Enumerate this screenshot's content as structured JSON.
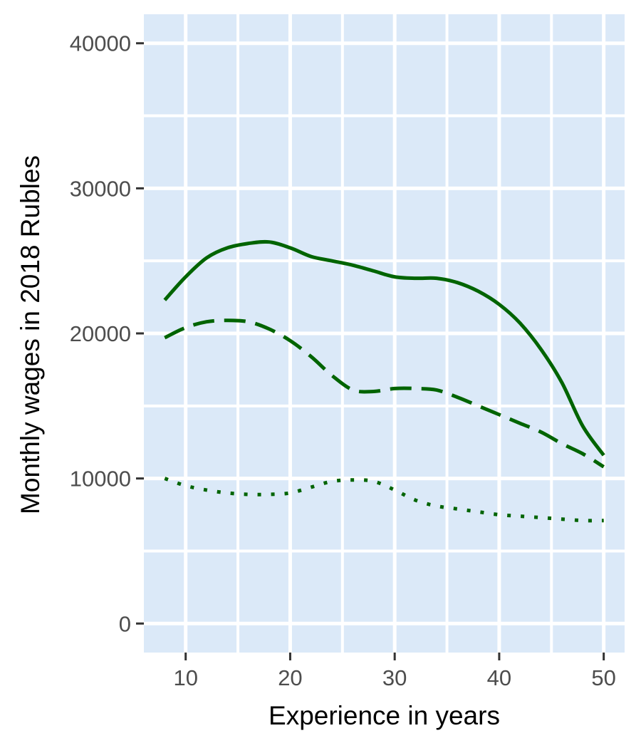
{
  "chart_data": {
    "type": "line",
    "title": "",
    "xlabel": "Experience in years",
    "ylabel": "Monthly wages in 2018 Rubles",
    "xlim": [
      6,
      52
    ],
    "ylim": [
      -2000,
      42000
    ],
    "x_ticks": [
      10,
      20,
      30,
      40,
      50
    ],
    "x_tick_labels": [
      "10",
      "20",
      "30",
      "40",
      "50"
    ],
    "y_ticks": [
      0,
      10000,
      20000,
      30000,
      40000
    ],
    "y_tick_labels": [
      "0",
      "10000",
      "20000",
      "30000",
      "40000"
    ],
    "grid": true,
    "legend": "none",
    "panel_color": "#dbe9f8",
    "line_color": "#006400",
    "series": [
      {
        "line_style": "solid",
        "x": [
          8,
          10,
          12,
          14,
          16,
          18,
          20,
          22,
          24,
          26,
          28,
          30,
          32,
          34,
          36,
          38,
          40,
          42,
          44,
          46,
          48,
          50
        ],
        "y": [
          22300,
          23900,
          25200,
          25900,
          26200,
          26300,
          25900,
          25300,
          25000,
          24700,
          24300,
          23900,
          23800,
          23800,
          23500,
          22900,
          22000,
          20700,
          18900,
          16600,
          13600,
          11600
        ]
      },
      {
        "line_style": "dashed",
        "x": [
          8,
          10,
          12,
          14,
          16,
          18,
          20,
          22,
          24,
          26,
          28,
          30,
          32,
          34,
          36,
          38,
          40,
          42,
          44,
          46,
          48,
          50
        ],
        "y": [
          19700,
          20400,
          20800,
          20900,
          20800,
          20300,
          19500,
          18400,
          17100,
          16100,
          16000,
          16200,
          16200,
          16100,
          15600,
          15000,
          14400,
          13800,
          13200,
          12400,
          11700,
          10800
        ]
      },
      {
        "line_style": "dotted",
        "x": [
          8,
          10,
          12,
          14,
          16,
          18,
          20,
          22,
          24,
          26,
          28,
          30,
          32,
          34,
          36,
          38,
          40,
          42,
          44,
          46,
          48,
          50
        ],
        "y": [
          10000,
          9500,
          9200,
          9000,
          8900,
          8900,
          9000,
          9400,
          9800,
          9900,
          9800,
          9200,
          8500,
          8100,
          7900,
          7700,
          7500,
          7400,
          7300,
          7200,
          7100,
          7100
        ]
      }
    ]
  }
}
